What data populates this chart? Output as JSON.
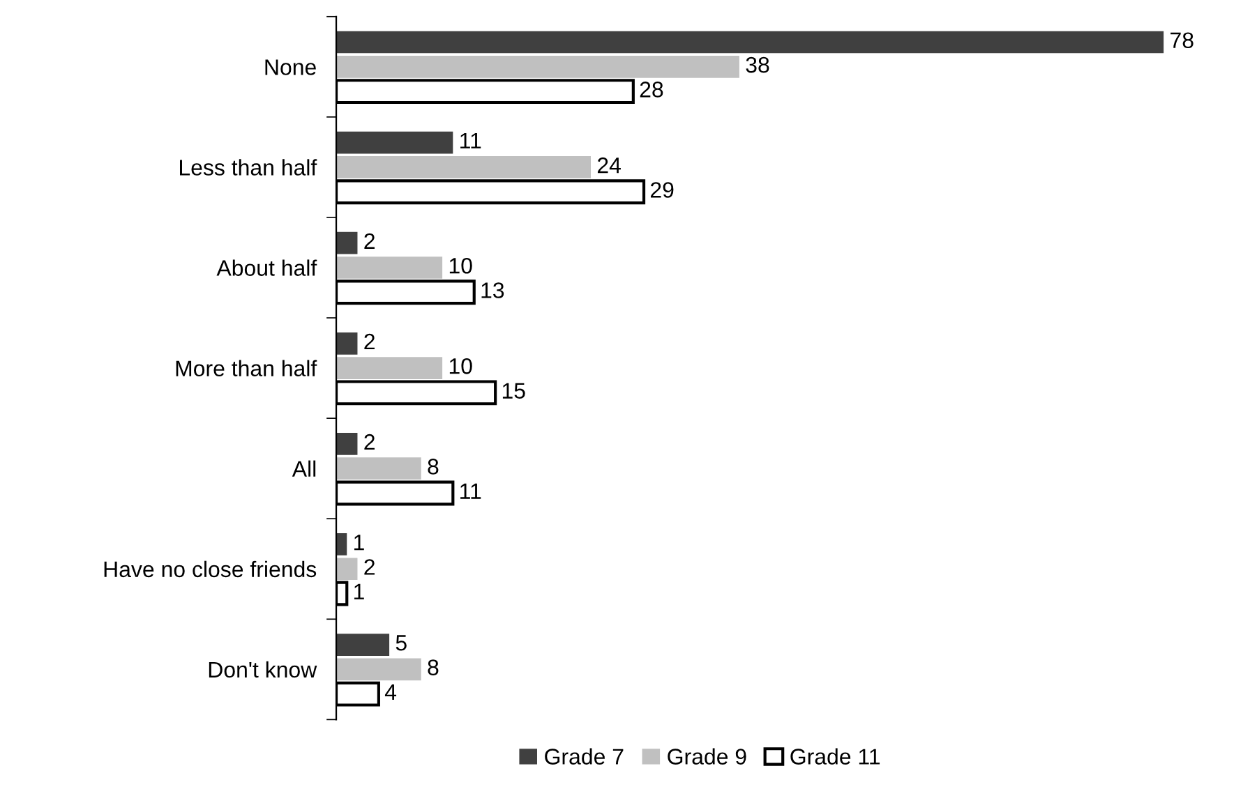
{
  "chart_data": {
    "type": "bar",
    "orientation": "horizontal",
    "categories": [
      "None",
      "Less than half",
      "About half",
      "More than half",
      "All",
      "Have no close friends",
      "Don't know"
    ],
    "series": [
      {
        "name": "Grade 7",
        "color": "#404040",
        "values": [
          78,
          11,
          2,
          2,
          2,
          1,
          5
        ]
      },
      {
        "name": "Grade 9",
        "color": "#c0c0c0",
        "values": [
          38,
          24,
          10,
          10,
          8,
          2,
          8
        ]
      },
      {
        "name": "Grade 11",
        "color": "#ffffff",
        "values": [
          28,
          29,
          13,
          15,
          11,
          1,
          4
        ]
      }
    ],
    "data_labels": true,
    "legend": "bottom",
    "grid": false
  }
}
